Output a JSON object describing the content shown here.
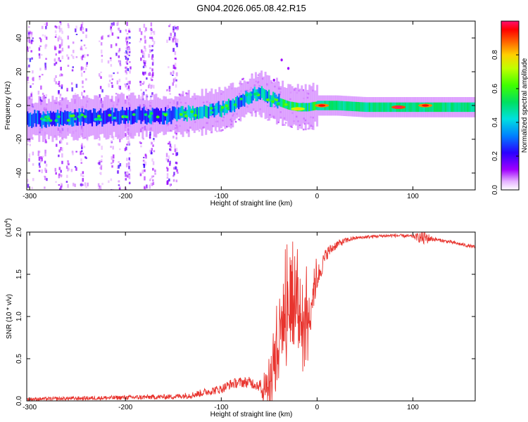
{
  "title": "GN04.2026.065.08.42.R15",
  "colors": {
    "snr_line": "#e8342e",
    "axis": "#000000",
    "background": "#ffffff"
  },
  "chart_data": [
    {
      "type": "heatmap",
      "name": "spectrogram",
      "xlabel": "Height of straight line (km)",
      "ylabel": "Frequency (Hz)",
      "xlim": [
        -303,
        165
      ],
      "ylim": [
        -50,
        50
      ],
      "xticks": [
        -300,
        -200,
        -100,
        0,
        100
      ],
      "xtick_labels": [
        "-300",
        "-200",
        "-100",
        "0",
        "100"
      ],
      "yticks": [
        -40,
        -20,
        0,
        20,
        40
      ],
      "ytick_labels": [
        "-40",
        "-20",
        "0",
        "20",
        "40"
      ],
      "ridge": {
        "x": [
          -303,
          -280,
          -250,
          -220,
          -200,
          -180,
          -160,
          -140,
          -120,
          -100,
          -90,
          -80,
          -70,
          -60,
          -55,
          -50,
          -40,
          -30,
          -20,
          -10,
          0,
          20,
          50,
          80,
          100,
          120,
          165
        ],
        "y": [
          -8,
          -8,
          -7,
          -7,
          -6,
          -6,
          -6,
          -5,
          -4,
          -2,
          0,
          3,
          6,
          7,
          6,
          4,
          2,
          0,
          -1,
          -1,
          0,
          0,
          -1,
          -1,
          -1,
          -1,
          -1
        ]
      },
      "scatter_region": [
        -303,
        -145
      ],
      "hot_spots": [
        {
          "x": 5,
          "y": 0,
          "value": 0.95
        },
        {
          "x": 85,
          "y": -1,
          "value": 1.0
        },
        {
          "x": 113,
          "y": 0,
          "value": 0.95
        },
        {
          "x": -20,
          "y": -2,
          "value": 0.8
        }
      ],
      "colorbar": {
        "label": "Normalized spectral amplitude",
        "ticks": [
          0.0,
          0.2,
          0.4,
          0.6,
          0.8
        ],
        "tick_labels": [
          "0.0",
          "0.2",
          "0.4",
          "0.6",
          "0.8"
        ],
        "range": [
          0,
          1
        ]
      }
    },
    {
      "type": "line",
      "name": "snr",
      "xlabel": "Height of straight line (km)",
      "ylabel": "SNR (10 * v/v)",
      "exponent_label": "(x10",
      "exponent_power": "4",
      "exponent_close": ")",
      "xlim": [
        -303,
        165
      ],
      "ylim": [
        0,
        2.0
      ],
      "xticks": [
        -300,
        -200,
        -100,
        0,
        100
      ],
      "xtick_labels": [
        "-300",
        "-200",
        "-100",
        "0",
        "100"
      ],
      "yticks": [
        0.0,
        0.5,
        1.0,
        1.5,
        2.0
      ],
      "ytick_labels": [
        "0.0",
        "0.5",
        "1.0",
        "1.5",
        "2.0"
      ],
      "series": [
        {
          "name": "SNR",
          "envelope_x": [
            -303,
            -250,
            -200,
            -150,
            -130,
            -110,
            -100,
            -90,
            -80,
            -70,
            -60,
            -50,
            -48,
            -45,
            -40,
            -35,
            -30,
            -25,
            -20,
            -15,
            -10,
            -5,
            0,
            5,
            10,
            20,
            30,
            40,
            50,
            60,
            80,
            100,
            110,
            115,
            120,
            140,
            165
          ],
          "envelope_y": [
            0.02,
            0.03,
            0.04,
            0.05,
            0.07,
            0.12,
            0.14,
            0.2,
            0.22,
            0.22,
            0.18,
            0.2,
            0.3,
            0.5,
            0.8,
            1.0,
            1.1,
            1.1,
            1.05,
            1.0,
            0.95,
            1.25,
            1.45,
            1.6,
            1.75,
            1.85,
            1.9,
            1.93,
            1.94,
            1.95,
            1.96,
            1.95,
            1.93,
            1.93,
            1.92,
            1.88,
            1.82
          ],
          "noise_amp_x": [
            -303,
            -150,
            -110,
            -60,
            -50,
            -40,
            -30,
            -20,
            -10,
            0,
            10,
            20,
            40,
            100,
            105,
            112,
            118,
            125,
            165
          ],
          "noise_amp_y": [
            0.02,
            0.03,
            0.05,
            0.07,
            0.2,
            0.4,
            0.45,
            0.45,
            0.35,
            0.15,
            0.08,
            0.05,
            0.02,
            0.02,
            0.05,
            0.1,
            0.04,
            0.02,
            0.02
          ]
        }
      ]
    }
  ]
}
